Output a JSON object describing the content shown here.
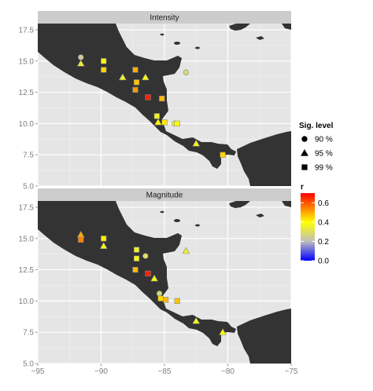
{
  "chart_data": [
    {
      "type": "scatter",
      "panel": "Intensity",
      "xlim": [
        -95,
        -75
      ],
      "ylim": [
        5,
        18
      ],
      "x_ticks": [
        -95,
        -90,
        -85,
        -80,
        -75
      ],
      "y_ticks": [
        5.0,
        7.5,
        10.0,
        12.5,
        15.0,
        17.5
      ],
      "x_tick_labels": [
        "−95",
        "−90",
        "−85",
        "−80",
        "−75"
      ],
      "y_tick_labels": [
        "5.0",
        "7.5",
        "10.0",
        "12.5",
        "15.0",
        "17.5"
      ],
      "grid": true,
      "points": [
        {
          "x": -91.6,
          "y": 15.3,
          "shape": "circle",
          "r": 0.24
        },
        {
          "x": -91.6,
          "y": 14.8,
          "shape": "triangle",
          "r": 0.34
        },
        {
          "x": -89.8,
          "y": 15.0,
          "shape": "square",
          "r": 0.38
        },
        {
          "x": -89.8,
          "y": 14.3,
          "shape": "square",
          "r": 0.45
        },
        {
          "x": -88.3,
          "y": 13.7,
          "shape": "triangle",
          "r": 0.35
        },
        {
          "x": -87.3,
          "y": 14.3,
          "shape": "square",
          "r": 0.5
        },
        {
          "x": -87.2,
          "y": 13.3,
          "shape": "square",
          "r": 0.47
        },
        {
          "x": -87.3,
          "y": 12.7,
          "shape": "square",
          "r": 0.52
        },
        {
          "x": -86.5,
          "y": 13.7,
          "shape": "triangle",
          "r": 0.38
        },
        {
          "x": -83.3,
          "y": 14.1,
          "shape": "circle",
          "r": 0.28
        },
        {
          "x": -86.3,
          "y": 12.1,
          "shape": "square",
          "r": 0.66
        },
        {
          "x": -85.2,
          "y": 12.0,
          "shape": "square",
          "r": 0.48
        },
        {
          "x": -85.6,
          "y": 10.6,
          "shape": "square",
          "r": 0.36
        },
        {
          "x": -85.5,
          "y": 10.1,
          "shape": "triangle",
          "r": 0.4
        },
        {
          "x": -85.0,
          "y": 10.1,
          "shape": "square",
          "r": 0.43
        },
        {
          "x": -84.2,
          "y": 10.0,
          "shape": "circle",
          "r": 0.36
        },
        {
          "x": -84.0,
          "y": 10.0,
          "shape": "square",
          "r": 0.4
        },
        {
          "x": -82.5,
          "y": 8.4,
          "shape": "triangle",
          "r": 0.37
        },
        {
          "x": -80.4,
          "y": 7.5,
          "shape": "square",
          "r": 0.45
        }
      ]
    },
    {
      "type": "scatter",
      "panel": "Magnitude",
      "xlim": [
        -95,
        -75
      ],
      "ylim": [
        5,
        18
      ],
      "x_ticks": [
        -95,
        -90,
        -85,
        -80,
        -75
      ],
      "y_ticks": [
        5.0,
        7.5,
        10.0,
        12.5,
        15.0,
        17.5
      ],
      "x_tick_labels": [
        "−95",
        "−90",
        "−85",
        "−80",
        "−75"
      ],
      "y_tick_labels": [
        "5.0",
        "7.5",
        "10.0",
        "12.5",
        "15.0",
        "17.5"
      ],
      "grid": true,
      "points": [
        {
          "x": -91.6,
          "y": 15.3,
          "shape": "triangle",
          "r": 0.5
        },
        {
          "x": -91.6,
          "y": 14.9,
          "shape": "square",
          "r": 0.55
        },
        {
          "x": -89.8,
          "y": 15.0,
          "shape": "square",
          "r": 0.42
        },
        {
          "x": -89.8,
          "y": 14.4,
          "shape": "triangle",
          "r": 0.37
        },
        {
          "x": -87.2,
          "y": 14.1,
          "shape": "square",
          "r": 0.35
        },
        {
          "x": -87.2,
          "y": 13.4,
          "shape": "square",
          "r": 0.37
        },
        {
          "x": -87.3,
          "y": 12.5,
          "shape": "square",
          "r": 0.48
        },
        {
          "x": -86.5,
          "y": 13.6,
          "shape": "circle",
          "r": 0.3
        },
        {
          "x": -83.3,
          "y": 14.0,
          "shape": "triangle",
          "r": 0.35
        },
        {
          "x": -86.3,
          "y": 12.2,
          "shape": "square",
          "r": 0.66
        },
        {
          "x": -85.8,
          "y": 11.8,
          "shape": "triangle",
          "r": 0.39
        },
        {
          "x": -85.4,
          "y": 10.6,
          "shape": "circle",
          "r": 0.27
        },
        {
          "x": -85.3,
          "y": 10.2,
          "shape": "square",
          "r": 0.45
        },
        {
          "x": -84.9,
          "y": 10.1,
          "shape": "square",
          "r": 0.48
        },
        {
          "x": -84.0,
          "y": 10.0,
          "shape": "square",
          "r": 0.47
        },
        {
          "x": -82.5,
          "y": 8.4,
          "shape": "triangle",
          "r": 0.37
        },
        {
          "x": -80.4,
          "y": 7.5,
          "shape": "triangle",
          "r": 0.4
        }
      ]
    }
  ],
  "legend": {
    "shape_title": "Sig. level",
    "shape_items": [
      {
        "shape": "circle",
        "label": "90 %"
      },
      {
        "shape": "triangle",
        "label": "95 %"
      },
      {
        "shape": "square",
        "label": "99 %"
      }
    ],
    "color_title": "r",
    "color_scale": {
      "min": 0.0,
      "max": 0.7,
      "ticks": [
        0.0,
        0.2,
        0.4,
        0.6
      ],
      "tick_labels": [
        "0.0",
        "0.2",
        "0.4",
        "0.6"
      ],
      "stops": [
        {
          "value": 0.0,
          "color": "#0000ff"
        },
        {
          "value": 0.2,
          "color": "#bebebe"
        },
        {
          "value": 0.4,
          "color": "#ffff00"
        },
        {
          "value": 0.7,
          "color": "#ff0000"
        }
      ]
    }
  },
  "colors": {
    "panel_background": "#e5e5e5",
    "grid_major": "#ffffff",
    "grid_minor": "#f2f2f2",
    "land": "#333333",
    "strip_background": "#cccccc",
    "point_outline": "#888888"
  }
}
